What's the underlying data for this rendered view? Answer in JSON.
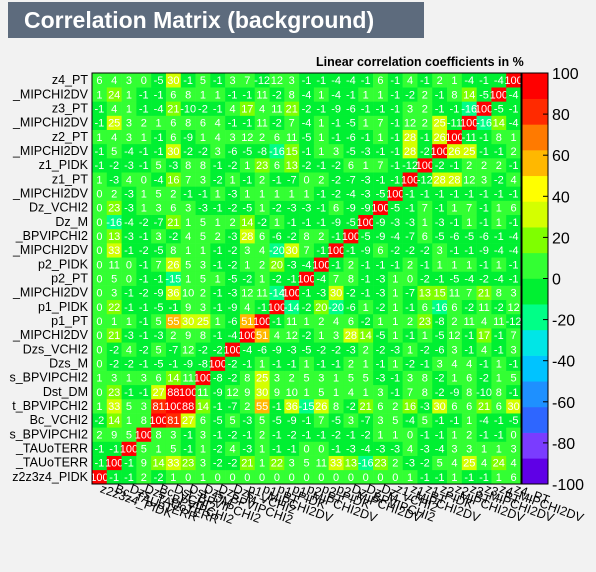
{
  "chart_data": {
    "type": "heatmap",
    "title": "Correlation Matrix (background)",
    "subtitle": "Linear correlation coefficients in %",
    "variables": [
      "z2z3z4_PIDK",
      "Bc_TAUoTERR",
      "Dzs_TAUoTERR",
      "Dzs_BPVIPCHI2",
      "Bc_VCHI2",
      "Dst_BPVIPCHI2",
      "Dst_DM",
      "Dzs_BPVIPCHI2",
      "Dzs_M",
      "Dzs_VCHI2",
      "p1_MIPCHI2DV",
      "p1_PT",
      "p1_PIDK",
      "p1_MIPCHI2DV",
      "p2_PT",
      "p2_PIDK",
      "p2_MIPCHI2DV",
      "Dz_BPVIPCHI2",
      "Dz_M",
      "Dz_VCHI2",
      "z1_MIPCHI2DV",
      "z1_PT",
      "z1_PIDK",
      "z2_MIPCHI2DV",
      "z2_PT",
      "z3_MIPCHI2DV",
      "z3_PT",
      "z4_MIPCHI2DV",
      "z4_PT"
    ],
    "y_tick_labels": [
      "z2z3z4_PIDK",
      "_TAUoTERR",
      "_TAUoTERR",
      "s_BPVIPCHI2",
      "Bc_VCHI2",
      "t_BPVIPCHI2",
      "Dst_DM",
      "s_BPVIPCHI2",
      "Dzs_M",
      "Dzs_VCHI2",
      "_MIPCHI2DV",
      "p1_PT",
      "p1_PIDK",
      "_MIPCHI2DV",
      "p2_PT",
      "p2_PIDK",
      "_MIPCHI2DV",
      "_BPVIPCHI2",
      "Dz_M",
      "Dz_VCHI2",
      "_MIPCHI2DV",
      "z1_PT",
      "z1_PIDK",
      "_MIPCHI2DV",
      "z2_PT",
      "_MIPCHI2DV",
      "z3_PT",
      "_MIPCHI2DV",
      "z4_PT"
    ],
    "matrix": [
      [
        100,
        -1,
        -1,
        2,
        -2,
        1,
        0,
        1,
        0,
        0,
        0,
        0,
        0,
        0,
        0,
        0,
        0,
        0,
        0,
        0,
        0,
        1,
        -1,
        -1,
        1,
        -1,
        -1,
        1,
        6
      ],
      [
        -1,
        100,
        -1,
        9,
        14,
        33,
        23,
        3,
        -2,
        -2,
        21,
        1,
        22,
        3,
        5,
        11,
        33,
        13,
        -16,
        23,
        2,
        -3,
        -2,
        5,
        4,
        25,
        4,
        24,
        4
      ],
      [
        -1,
        -1,
        100,
        5,
        1,
        5,
        -1,
        1,
        -2,
        4,
        -3,
        1,
        -1,
        -1,
        0,
        0,
        -1,
        -3,
        -4,
        -3,
        -3,
        4,
        -3,
        -4,
        3,
        3,
        1,
        1,
        3
      ],
      [
        2,
        9,
        5,
        100,
        8,
        3,
        -1,
        3,
        -1,
        -2,
        -1,
        2,
        -1,
        -2,
        -1,
        -1,
        -2,
        -1,
        -2,
        1,
        1,
        0,
        -1,
        -1,
        1,
        2,
        -1,
        -1,
        0
      ],
      [
        -2,
        14,
        1,
        8,
        100,
        81,
        27,
        6,
        -5,
        5,
        -3,
        5,
        -5,
        -9,
        -1,
        7,
        -5,
        3,
        -7,
        3,
        5,
        -4,
        5,
        -1,
        -1,
        1,
        -4,
        -1,
        -5
      ],
      [
        1,
        33,
        5,
        3,
        81,
        100,
        88,
        14,
        -1,
        -7,
        2,
        55,
        -1,
        36,
        -15,
        26,
        8,
        -2,
        21,
        6,
        2,
        16,
        -3,
        30,
        6,
        6,
        21,
        6,
        30
      ],
      [
        0,
        23,
        -1,
        -1,
        27,
        88,
        100,
        11,
        -9,
        12,
        9,
        30,
        9,
        10,
        1,
        5,
        1,
        4,
        1,
        3,
        -1,
        7,
        8,
        -2,
        -9,
        8,
        -10,
        8,
        -1
      ],
      [
        1,
        3,
        1,
        3,
        6,
        14,
        11,
        100,
        -8,
        -2,
        8,
        25,
        3,
        2,
        5,
        3,
        1,
        5,
        5,
        -3,
        -1,
        3,
        8,
        -2,
        1,
        6,
        -2,
        1,
        5
      ],
      [
        0,
        -2,
        -2,
        -1,
        -5,
        -1,
        -9,
        -8,
        100,
        -2,
        -1,
        1,
        -1,
        -1,
        1,
        -1,
        -1,
        2,
        1,
        -1,
        1,
        -2,
        -1,
        3,
        4,
        4,
        -1,
        1,
        -1
      ],
      [
        0,
        -2,
        4,
        -2,
        5,
        -7,
        12,
        -2,
        -2,
        100,
        -4,
        -6,
        -9,
        -3,
        -5,
        -2,
        -2,
        -3,
        2,
        -2,
        -3,
        1,
        -2,
        -6,
        3,
        -1,
        4,
        -1,
        3
      ],
      [
        0,
        21,
        -3,
        -1,
        -3,
        2,
        9,
        8,
        -1,
        -4,
        100,
        51,
        4,
        12,
        -2,
        1,
        3,
        28,
        14,
        -5,
        1,
        -1,
        1,
        -5,
        12,
        -1,
        17,
        -1,
        7
      ],
      [
        0,
        1,
        1,
        -1,
        5,
        55,
        30,
        25,
        1,
        -6,
        51,
        100,
        -1,
        11,
        1,
        2,
        4,
        6,
        -2,
        1,
        1,
        2,
        23,
        -8,
        2,
        11,
        4,
        11,
        -12
      ],
      [
        0,
        22,
        -1,
        -1,
        -5,
        -1,
        9,
        3,
        -1,
        -9,
        4,
        -1,
        100,
        -14,
        -2,
        20,
        -20,
        -6,
        1,
        -2,
        1,
        -1,
        6,
        -16,
        6,
        -2,
        11,
        -2,
        12
      ],
      [
        0,
        3,
        -1,
        -2,
        -9,
        36,
        10,
        2,
        -1,
        -3,
        12,
        11,
        -14,
        100,
        -1,
        -3,
        30,
        -2,
        -1,
        -3,
        1,
        -7,
        13,
        15,
        11,
        7,
        21,
        8,
        3
      ],
      [
        0,
        5,
        0,
        -1,
        -1,
        -15,
        1,
        5,
        1,
        -5,
        -2,
        1,
        -2,
        -1,
        100,
        -4,
        7,
        8,
        -1,
        -3,
        1,
        0,
        -2,
        -1,
        -5,
        -4,
        -2,
        -4,
        -1
      ],
      [
        0,
        11,
        0,
        -1,
        7,
        26,
        5,
        3,
        -1,
        -2,
        1,
        2,
        20,
        -3,
        -4,
        100,
        -1,
        2,
        -1,
        -1,
        -1,
        2,
        -1,
        1,
        1,
        1,
        -1,
        1,
        -1
      ],
      [
        0,
        33,
        -1,
        -2,
        -5,
        8,
        1,
        1,
        -1,
        -2,
        3,
        4,
        -20,
        30,
        7,
        -1,
        100,
        -1,
        -9,
        6,
        -2,
        -2,
        -2,
        3,
        -1,
        -1,
        -9,
        -4,
        -4
      ],
      [
        0,
        13,
        -3,
        -1,
        3,
        -2,
        4,
        5,
        2,
        -3,
        28,
        6,
        -6,
        -2,
        8,
        2,
        -1,
        100,
        -5,
        -9,
        -4,
        -7,
        6,
        -5,
        -6,
        -5,
        -6,
        -1,
        -4
      ],
      [
        0,
        -16,
        -4,
        -2,
        -7,
        21,
        1,
        5,
        1,
        2,
        14,
        -2,
        1,
        -1,
        -1,
        -1,
        -9,
        -5,
        100,
        -9,
        -3,
        -3,
        1,
        -3,
        -1,
        1,
        -1,
        1,
        -1
      ],
      [
        0,
        23,
        -3,
        1,
        3,
        6,
        3,
        -3,
        -1,
        -2,
        -5,
        1,
        -2,
        -3,
        -3,
        -1,
        6,
        -9,
        -9,
        100,
        -5,
        -1,
        7,
        -1,
        1,
        7,
        -1,
        1,
        6
      ],
      [
        0,
        2,
        -3,
        1,
        5,
        2,
        -1,
        -1,
        1,
        -3,
        1,
        1,
        1,
        1,
        1,
        -1,
        -2,
        -4,
        -3,
        -5,
        100,
        -1,
        -1,
        -1,
        -1,
        -1,
        -1,
        -1,
        -1
      ],
      [
        1,
        -3,
        4,
        0,
        -4,
        16,
        7,
        3,
        -2,
        1,
        -1,
        2,
        -1,
        -7,
        0,
        2,
        -2,
        -7,
        -3,
        -1,
        -1,
        100,
        -12,
        28,
        28,
        12,
        3,
        -2,
        4
      ],
      [
        -1,
        -2,
        -3,
        -1,
        5,
        -3,
        8,
        8,
        -1,
        -2,
        1,
        23,
        6,
        13,
        -2,
        -1,
        -2,
        6,
        1,
        7,
        -1,
        -12,
        100,
        -2,
        -1,
        2,
        2,
        2,
        -1
      ],
      [
        -1,
        5,
        -4,
        -1,
        -1,
        30,
        -2,
        -2,
        3,
        -6,
        -5,
        -8,
        -16,
        15,
        -1,
        1,
        3,
        -5,
        -3,
        -1,
        -1,
        28,
        -2,
        100,
        26,
        25,
        -1,
        -1,
        2
      ],
      [
        1,
        4,
        3,
        1,
        -1,
        6,
        -9,
        1,
        4,
        3,
        12,
        2,
        6,
        11,
        -5,
        1,
        -1,
        -6,
        -1,
        1,
        -1,
        28,
        -1,
        26,
        100,
        -11,
        -1,
        8,
        1
      ],
      [
        -1,
        25,
        3,
        2,
        1,
        6,
        8,
        6,
        4,
        -1,
        -1,
        11,
        -2,
        7,
        -4,
        1,
        -1,
        -5,
        1,
        7,
        -1,
        12,
        2,
        25,
        -11,
        100,
        -16,
        14,
        -4
      ],
      [
        -1,
        4,
        1,
        -1,
        -4,
        21,
        -10,
        -2,
        -1,
        4,
        17,
        4,
        11,
        21,
        -2,
        -1,
        -9,
        -6,
        -1,
        -1,
        -1,
        3,
        2,
        -1,
        -1,
        -16,
        100,
        -5,
        -1
      ],
      [
        1,
        24,
        1,
        -1,
        -1,
        6,
        8,
        1,
        1,
        -1,
        -1,
        11,
        -2,
        8,
        -4,
        1,
        -4,
        -1,
        1,
        1,
        -1,
        -2,
        2,
        -1,
        8,
        14,
        -5,
        100,
        -4
      ],
      [
        6,
        4,
        3,
        0,
        -5,
        30,
        -1,
        5,
        -1,
        3,
        7,
        -12,
        12,
        3,
        -1,
        -1,
        -4,
        -4,
        -1,
        6,
        -1,
        4,
        -1,
        2,
        1,
        -4,
        -1,
        -4,
        100
      ]
    ],
    "zlim": [
      -100,
      100
    ],
    "z_ticks": [
      -100,
      -80,
      -60,
      -40,
      -20,
      0,
      20,
      40,
      60,
      80,
      100
    ],
    "colorscale": [
      "#5f00e6",
      "#7a3cff",
      "#2e66ff",
      "#1e90ff",
      "#00c3ff",
      "#00e6e6",
      "#00ff87",
      "#00f032",
      "#33ff33",
      "#7fff00",
      "#d4ff00",
      "#ffff00",
      "#ffb800",
      "#ff7a00",
      "#ff2a00",
      "#ff0000"
    ]
  }
}
